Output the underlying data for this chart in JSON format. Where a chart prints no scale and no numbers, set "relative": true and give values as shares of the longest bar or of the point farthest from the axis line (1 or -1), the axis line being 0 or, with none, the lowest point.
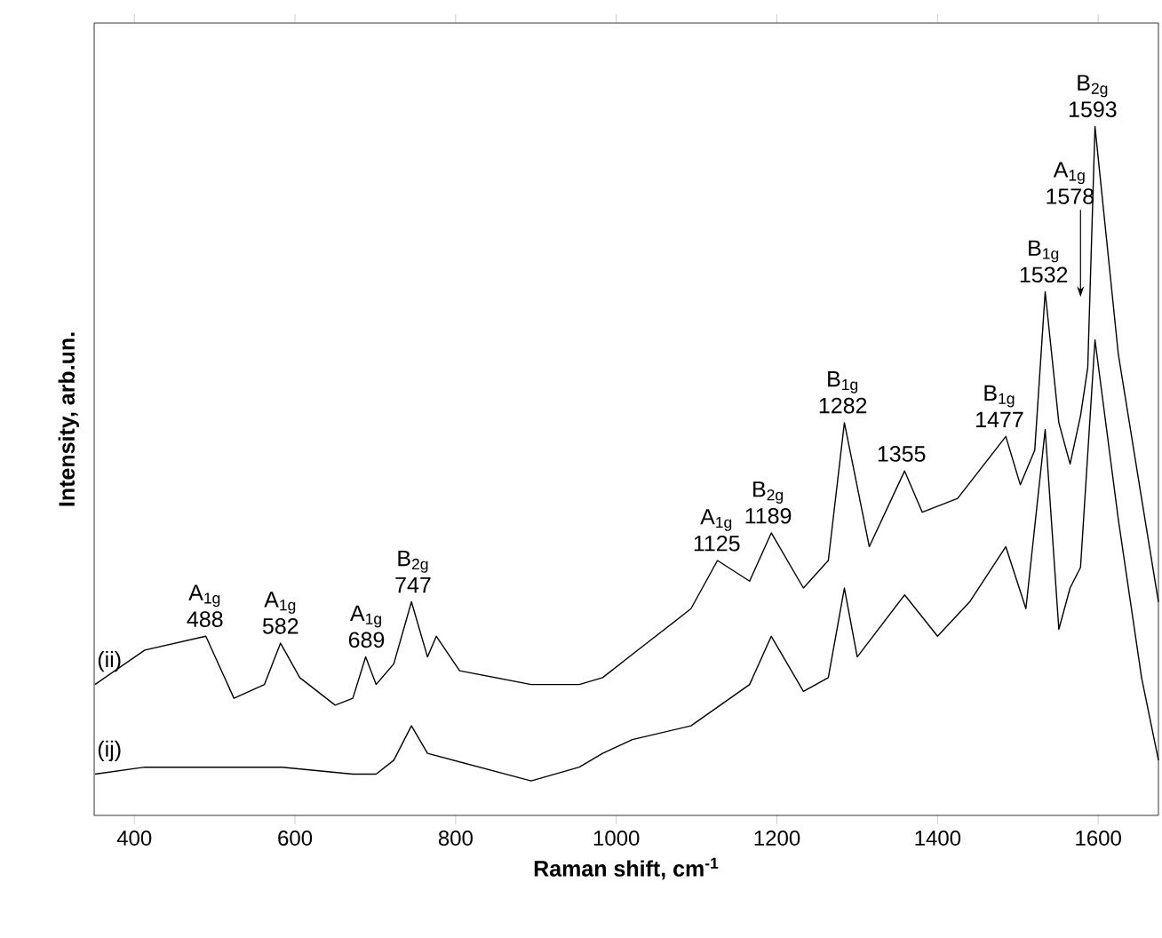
{
  "chart_data": {
    "type": "line",
    "relative": true,
    "xlabel": "Raman shift, cm$^{-1}$",
    "ylabel": "Intensity, arb.un.",
    "xlim": [
      350,
      1675
    ],
    "xticks": [
      400,
      600,
      800,
      1000,
      1200,
      1400,
      1600
    ],
    "tick_labels": "x",
    "series": [
      {
        "name": "(ii)",
        "color": "#000000",
        "x": [
          351,
          413,
          489,
          524,
          562,
          582,
          606,
          650,
          672,
          688,
          701,
          723,
          745,
          765,
          776,
          805,
          894,
          954,
          983,
          1027,
          1093,
          1126,
          1166,
          1193,
          1233,
          1264,
          1284,
          1315,
          1359,
          1381,
          1425,
          1485,
          1503,
          1521,
          1534,
          1551,
          1565,
          1578,
          1587,
          1596,
          1625,
          1654,
          1675
        ],
        "values": [
          0.19,
          0.24,
          0.26,
          0.17,
          0.19,
          0.25,
          0.2,
          0.16,
          0.17,
          0.23,
          0.19,
          0.22,
          0.31,
          0.23,
          0.26,
          0.21,
          0.19,
          0.19,
          0.2,
          0.24,
          0.3,
          0.37,
          0.34,
          0.41,
          0.33,
          0.37,
          0.57,
          0.39,
          0.5,
          0.44,
          0.46,
          0.55,
          0.48,
          0.53,
          0.76,
          0.57,
          0.51,
          0.58,
          0.65,
          1.0,
          0.67,
          0.46,
          0.31
        ]
      },
      {
        "name": "(ij)",
        "color": "#000000",
        "x": [
          351,
          413,
          489,
          584,
          672,
          701,
          723,
          745,
          765,
          894,
          954,
          983,
          1020,
          1093,
          1166,
          1193,
          1233,
          1264,
          1284,
          1300,
          1359,
          1400,
          1440,
          1485,
          1510,
          1534,
          1551,
          1565,
          1578,
          1596,
          1625,
          1654,
          1675
        ],
        "values": [
          0.06,
          0.07,
          0.07,
          0.07,
          0.06,
          0.06,
          0.08,
          0.13,
          0.09,
          0.05,
          0.07,
          0.09,
          0.11,
          0.13,
          0.19,
          0.26,
          0.18,
          0.2,
          0.33,
          0.23,
          0.32,
          0.26,
          0.31,
          0.39,
          0.3,
          0.56,
          0.27,
          0.33,
          0.36,
          0.69,
          0.43,
          0.2,
          0.08
        ]
      }
    ],
    "annotations": [
      {
        "text": "488",
        "x": 488,
        "y": 0.26
      },
      {
        "text": "A$_{1g}$",
        "x": 488,
        "y": 0.26
      },
      {
        "text": "582",
        "x": 582,
        "y": 0.25
      },
      {
        "text": "A$_{1g}$",
        "x": 582,
        "y": 0.25
      },
      {
        "text": "689",
        "x": 689,
        "y": 0.23
      },
      {
        "text": "A$_{1g}$",
        "x": 689,
        "y": 0.23
      },
      {
        "text": "747",
        "x": 747,
        "y": 0.31
      },
      {
        "text": "B$_{2g}$",
        "x": 747,
        "y": 0.31
      },
      {
        "text": "1125",
        "x": 1125,
        "y": 0.37
      },
      {
        "text": "A$_{1g}$",
        "x": 1125,
        "y": 0.37
      },
      {
        "text": "1189",
        "x": 1189,
        "y": 0.41
      },
      {
        "text": "B$_{2g}$",
        "x": 1189,
        "y": 0.41
      },
      {
        "text": "1282",
        "x": 1282,
        "y": 0.57
      },
      {
        "text": "B$_{1g}$",
        "x": 1282,
        "y": 0.57
      },
      {
        "text": "1355",
        "x": 1355,
        "y": 0.5
      },
      {
        "text": "1477",
        "x": 1477,
        "y": 0.55
      },
      {
        "text": "B$_{1g}$",
        "x": 1477,
        "y": 0.55
      },
      {
        "text": "1532",
        "x": 1532,
        "y": 0.76
      },
      {
        "text": "B$_{1g}$",
        "x": 1532,
        "y": 0.76
      },
      {
        "text": "1578",
        "x": 1578,
        "y": 0.75
      },
      {
        "text": "A$_{1g}$",
        "x": 1578,
        "y": 0.75
      },
      {
        "text": "1593",
        "x": 1593,
        "y": 1.0
      },
      {
        "text": "B$_{2g}$",
        "x": 1593,
        "y": 1.0
      }
    ]
  }
}
